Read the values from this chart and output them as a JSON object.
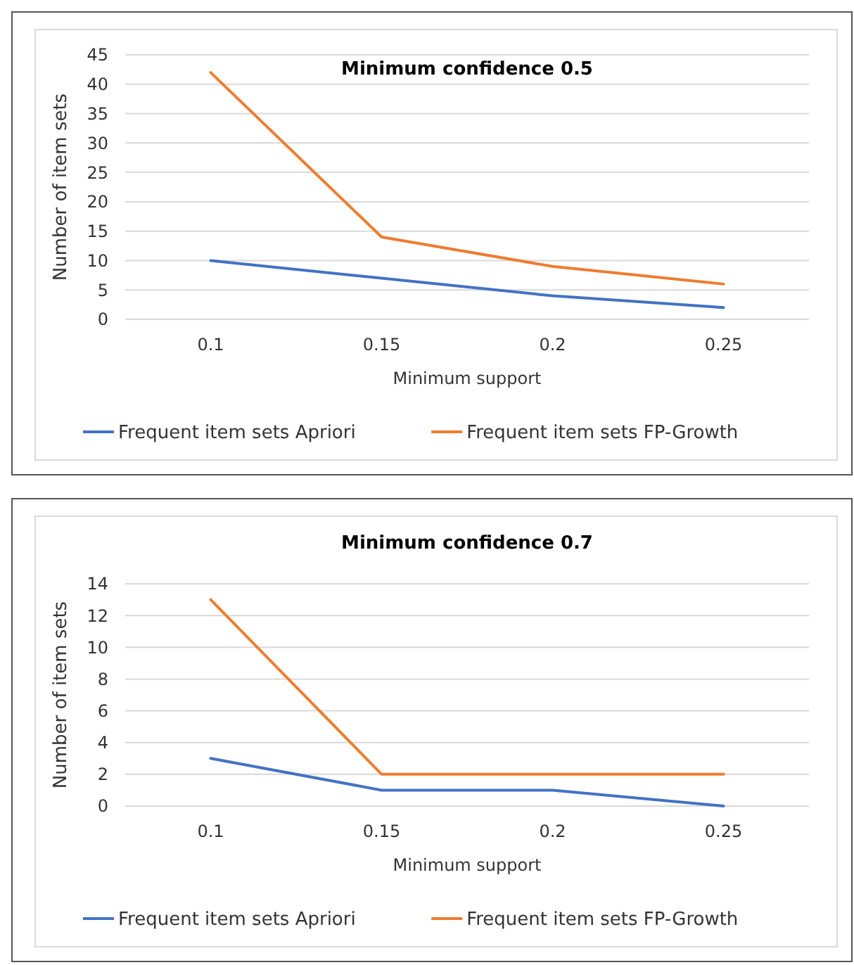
{
  "chart_data": [
    {
      "type": "line",
      "title": "Minimum confidence 0.5",
      "xlabel": "Minimum support",
      "ylabel": "Number of item sets",
      "categories": [
        "0.1",
        "0.15",
        "0.2",
        "0.25"
      ],
      "ylim": [
        0,
        45
      ],
      "yticks": [
        0,
        5,
        10,
        15,
        20,
        25,
        30,
        35,
        40,
        45
      ],
      "grid": "y",
      "legend": "bottom",
      "series": [
        {
          "name": "Frequent item sets Apriori",
          "color": "#4472c4",
          "values": [
            10,
            7,
            4,
            2
          ]
        },
        {
          "name": "Frequent item sets FP-Growth",
          "color": "#ed7d31",
          "values": [
            42,
            14,
            9,
            6
          ]
        }
      ]
    },
    {
      "type": "line",
      "title": "Minimum confidence 0.7",
      "xlabel": "Minimum support",
      "ylabel": "Number of item sets",
      "categories": [
        "0.1",
        "0.15",
        "0.2",
        "0.25"
      ],
      "ylim": [
        0,
        14
      ],
      "yticks": [
        0,
        2,
        4,
        6,
        8,
        10,
        12,
        14
      ],
      "grid": "y",
      "legend": "bottom",
      "series": [
        {
          "name": "Frequent item sets Apriori",
          "color": "#4472c4",
          "values": [
            3,
            1,
            1,
            0
          ]
        },
        {
          "name": "Frequent item sets FP-Growth",
          "color": "#ed7d31",
          "values": [
            13,
            2,
            2,
            2
          ]
        }
      ]
    }
  ]
}
